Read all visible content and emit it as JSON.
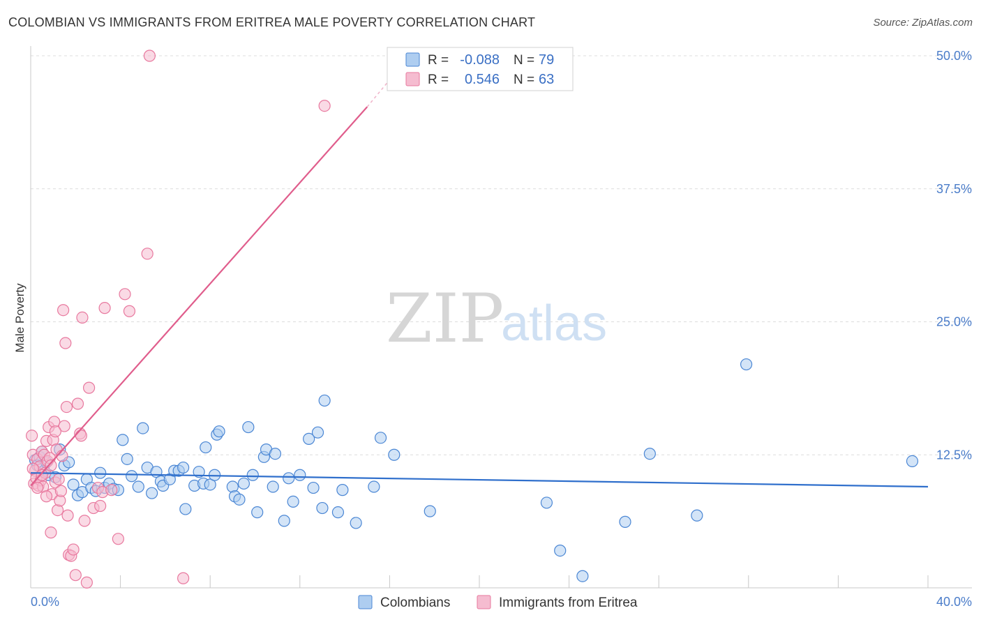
{
  "title": "COLOMBIAN VS IMMIGRANTS FROM ERITREA MALE POVERTY CORRELATION CHART",
  "source": "Source: ZipAtlas.com",
  "watermark": {
    "zip": "ZIP",
    "atlas": "atlas"
  },
  "chart_data": {
    "type": "scatter",
    "xlabel": "",
    "ylabel": "Male Poverty",
    "xlim": [
      0,
      40
    ],
    "ylim": [
      0,
      50
    ],
    "x_tick_labels": {
      "min": "0.0%",
      "max": "40.0%"
    },
    "y_ticks": [
      12.5,
      25.0,
      37.5,
      50.0
    ],
    "y_tick_labels": [
      "12.5%",
      "25.0%",
      "37.5%",
      "50.0%"
    ],
    "legend": {
      "rows": [
        {
          "r_label": "R =",
          "r_value": "-0.088",
          "n_label": "N =",
          "n_value": "79"
        },
        {
          "r_label": "R =",
          "r_value": "0.546",
          "n_label": "N =",
          "n_value": "63"
        }
      ]
    },
    "series": [
      {
        "name": "Colombians",
        "color": "#4a86d4",
        "fill": "#aecdf0",
        "trend": {
          "x": [
            0,
            40
          ],
          "y": [
            10.8,
            9.5
          ],
          "color": "#2f6fcc"
        },
        "points": [
          [
            0.2,
            12.0
          ],
          [
            0.3,
            11.5
          ],
          [
            0.4,
            12.3
          ],
          [
            0.5,
            12.8
          ],
          [
            0.6,
            11.0
          ],
          [
            0.7,
            11.8
          ],
          [
            0.8,
            10.6
          ],
          [
            1.1,
            10.4
          ],
          [
            1.3,
            13.0
          ],
          [
            1.5,
            11.5
          ],
          [
            1.7,
            11.8
          ],
          [
            1.9,
            9.7
          ],
          [
            2.1,
            8.7
          ],
          [
            2.3,
            9.0
          ],
          [
            2.5,
            10.2
          ],
          [
            2.7,
            9.4
          ],
          [
            2.9,
            9.1
          ],
          [
            3.1,
            10.8
          ],
          [
            3.3,
            9.4
          ],
          [
            3.5,
            9.8
          ],
          [
            3.7,
            9.3
          ],
          [
            3.9,
            9.2
          ],
          [
            4.1,
            13.9
          ],
          [
            4.3,
            12.1
          ],
          [
            4.5,
            10.5
          ],
          [
            4.8,
            9.5
          ],
          [
            5.0,
            15.0
          ],
          [
            5.2,
            11.3
          ],
          [
            5.4,
            8.9
          ],
          [
            5.6,
            10.9
          ],
          [
            5.8,
            10.0
          ],
          [
            5.9,
            9.6
          ],
          [
            6.2,
            10.2
          ],
          [
            6.4,
            11.0
          ],
          [
            6.6,
            11.0
          ],
          [
            6.8,
            11.3
          ],
          [
            6.9,
            7.4
          ],
          [
            7.3,
            9.6
          ],
          [
            7.5,
            10.9
          ],
          [
            7.7,
            9.8
          ],
          [
            7.8,
            13.2
          ],
          [
            8.0,
            9.7
          ],
          [
            8.2,
            10.6
          ],
          [
            8.3,
            14.4
          ],
          [
            8.4,
            14.7
          ],
          [
            9.0,
            9.5
          ],
          [
            9.1,
            8.6
          ],
          [
            9.3,
            8.3
          ],
          [
            9.5,
            9.8
          ],
          [
            9.7,
            15.1
          ],
          [
            9.9,
            10.6
          ],
          [
            10.1,
            7.1
          ],
          [
            10.4,
            12.3
          ],
          [
            10.5,
            13.0
          ],
          [
            10.8,
            9.5
          ],
          [
            10.9,
            12.6
          ],
          [
            11.3,
            6.3
          ],
          [
            11.5,
            10.3
          ],
          [
            11.7,
            8.1
          ],
          [
            12.0,
            10.6
          ],
          [
            12.4,
            14.0
          ],
          [
            12.6,
            9.4
          ],
          [
            12.8,
            14.6
          ],
          [
            13.0,
            7.5
          ],
          [
            13.1,
            17.6
          ],
          [
            13.7,
            7.1
          ],
          [
            13.9,
            9.2
          ],
          [
            14.5,
            6.1
          ],
          [
            15.3,
            9.5
          ],
          [
            15.6,
            14.1
          ],
          [
            16.2,
            12.5
          ],
          [
            17.8,
            7.2
          ],
          [
            23.0,
            8.0
          ],
          [
            23.6,
            3.5
          ],
          [
            24.6,
            1.1
          ],
          [
            26.5,
            6.2
          ],
          [
            27.6,
            12.6
          ],
          [
            29.7,
            6.8
          ],
          [
            31.9,
            21.0
          ],
          [
            39.3,
            11.9
          ]
        ]
      },
      {
        "name": "Immigrants from Eritrea",
        "color": "#e8789e",
        "fill": "#f5bcd0",
        "trend": {
          "x": [
            0,
            15.0
          ],
          "y": [
            9.6,
            45.2
          ],
          "dash_x": [
            15.0,
            16.3
          ],
          "dash_y": [
            45.2,
            48.5
          ],
          "color": "#e05d8c"
        },
        "points": [
          [
            0.05,
            14.3
          ],
          [
            0.1,
            12.5
          ],
          [
            0.15,
            9.8
          ],
          [
            0.2,
            11.0
          ],
          [
            0.25,
            10.3
          ],
          [
            0.3,
            12.1
          ],
          [
            0.35,
            9.6
          ],
          [
            0.4,
            11.4
          ],
          [
            0.45,
            10.1
          ],
          [
            0.5,
            12.8
          ],
          [
            0.55,
            9.5
          ],
          [
            0.6,
            12.5
          ],
          [
            0.65,
            10.8
          ],
          [
            0.7,
            13.8
          ],
          [
            0.75,
            11.9
          ],
          [
            0.8,
            15.1
          ],
          [
            0.85,
            12.2
          ],
          [
            0.9,
            5.2
          ],
          [
            0.95,
            8.8
          ],
          [
            1.0,
            13.9
          ],
          [
            1.05,
            15.6
          ],
          [
            1.1,
            9.9
          ],
          [
            1.15,
            13.0
          ],
          [
            1.2,
            7.3
          ],
          [
            1.25,
            10.2
          ],
          [
            1.3,
            8.2
          ],
          [
            1.35,
            9.1
          ],
          [
            1.4,
            12.4
          ],
          [
            1.45,
            26.1
          ],
          [
            1.5,
            15.2
          ],
          [
            1.55,
            23.0
          ],
          [
            1.6,
            17.0
          ],
          [
            1.65,
            6.8
          ],
          [
            1.7,
            3.1
          ],
          [
            1.8,
            3.0
          ],
          [
            1.9,
            3.6
          ],
          [
            2.0,
            1.2
          ],
          [
            2.1,
            17.3
          ],
          [
            2.2,
            14.5
          ],
          [
            2.25,
            14.3
          ],
          [
            2.3,
            25.4
          ],
          [
            2.4,
            6.3
          ],
          [
            2.5,
            0.5
          ],
          [
            2.6,
            18.8
          ],
          [
            2.8,
            7.5
          ],
          [
            3.0,
            9.4
          ],
          [
            3.1,
            7.7
          ],
          [
            3.2,
            9.0
          ],
          [
            3.3,
            26.3
          ],
          [
            3.6,
            9.2
          ],
          [
            3.9,
            4.6
          ],
          [
            4.2,
            27.6
          ],
          [
            4.4,
            26.0
          ],
          [
            5.2,
            31.4
          ],
          [
            5.3,
            50.0
          ],
          [
            6.8,
            0.9
          ],
          [
            13.1,
            45.3
          ],
          [
            0.1,
            11.2
          ],
          [
            0.3,
            9.4
          ],
          [
            0.5,
            10.6
          ],
          [
            0.7,
            8.6
          ],
          [
            0.9,
            11.5
          ],
          [
            1.1,
            14.7
          ]
        ]
      }
    ]
  }
}
